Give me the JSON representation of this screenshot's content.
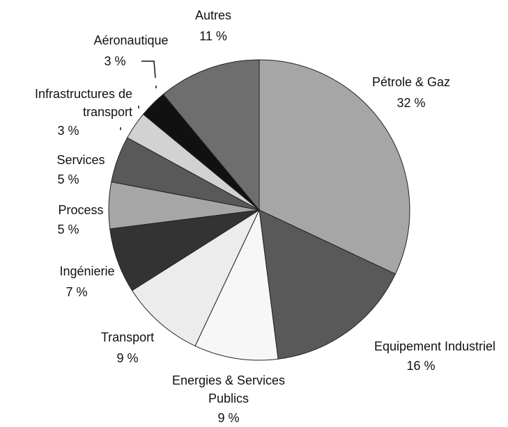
{
  "chart_data": {
    "type": "pie",
    "categories": [
      "Pétrole & Gaz",
      "Equipement Industriel",
      "Energies & Services Publics",
      "Transport",
      "Ingénierie",
      "Process",
      "Services",
      "Infrastructures de transport",
      "Aéronautique",
      "Autres"
    ],
    "values": [
      32,
      16,
      9,
      9,
      7,
      5,
      5,
      3,
      3,
      11
    ],
    "value_labels": [
      "32 %",
      "16 %",
      "9 %",
      "9 %",
      "7 %",
      "5 %",
      "5 %",
      "3 %",
      "3 %",
      "11 %"
    ],
    "colors": [
      "#a6a6a6",
      "#595959",
      "#f7f7f7",
      "#ececec",
      "#333333",
      "#a6a6a6",
      "#595959",
      "#d2d2d2",
      "#111111",
      "#6e6e6e"
    ]
  }
}
